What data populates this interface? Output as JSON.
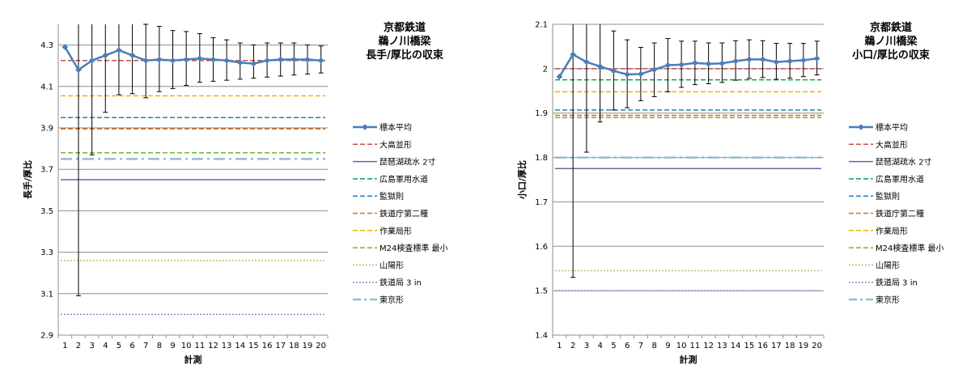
{
  "chart_data": [
    {
      "type": "line",
      "title_lines": [
        "京都鉄道",
        "鵜ノ川橋梁",
        "長手/厚比の収束"
      ],
      "xlabel": "計測",
      "ylabel": "長手/厚比",
      "ylim": [
        2.9,
        4.4
      ],
      "yticks": [
        "2.9",
        "3.1",
        "3.3",
        "3.5",
        "3.7",
        "3.9",
        "4.1",
        "4.3"
      ],
      "ytick_values": [
        2.9,
        3.1,
        3.3,
        3.5,
        3.7,
        3.9,
        4.1,
        4.3
      ],
      "categories": [
        "1",
        "2",
        "3",
        "4",
        "5",
        "6",
        "7",
        "8",
        "9",
        "10",
        "11",
        "12",
        "13",
        "14",
        "15",
        "16",
        "17",
        "18",
        "19",
        "20"
      ],
      "grid": true,
      "legend_position": "right",
      "sample": {
        "name": "標本平均",
        "color": "#4a7ebb",
        "values": [
          4.29,
          4.18,
          4.225,
          4.25,
          4.275,
          4.25,
          4.225,
          4.23,
          4.225,
          4.23,
          4.235,
          4.23,
          4.225,
          4.215,
          4.21,
          4.225,
          4.23,
          4.23,
          4.23,
          4.225
        ],
        "err_high": [
          null,
          4.46,
          4.46,
          4.44,
          4.42,
          4.41,
          4.4,
          4.39,
          4.37,
          4.365,
          4.355,
          4.335,
          4.325,
          4.31,
          4.3,
          4.31,
          4.31,
          4.31,
          4.3,
          4.295
        ],
        "err_low": [
          null,
          3.09,
          3.77,
          3.975,
          4.06,
          4.065,
          4.045,
          4.075,
          4.09,
          4.105,
          4.12,
          4.125,
          4.13,
          4.135,
          4.14,
          4.145,
          4.15,
          4.155,
          4.16,
          4.165
        ]
      },
      "references": [
        {
          "name": "大高並形",
          "value": 4.225,
          "color": "#c0504d",
          "dash": "dash"
        },
        {
          "name": "琵琶湖疏水 2寸",
          "value": 3.65,
          "color": "#7b5ea7",
          "dash": "solid"
        },
        {
          "name": "広島軍用水道",
          "value": 3.78,
          "color": "#00a651",
          "dash": "dash"
        },
        {
          "name": "監獄則",
          "value": 3.95,
          "color": "#1f85b8",
          "dash": "dash"
        },
        {
          "name": "鉄道庁第二種",
          "value": 3.895,
          "color": "#e46c0a",
          "dash": "dash"
        },
        {
          "name": "作業局形",
          "value": 4.055,
          "color": "#f0b400",
          "dash": "dash"
        },
        {
          "name": "M24検査標準 最小",
          "value": 3.78,
          "color": "#77b039",
          "dash": "dash"
        },
        {
          "name": "山陽形",
          "value": 3.26,
          "color": "#c4bd66",
          "dash": "dot"
        },
        {
          "name": "鉄道局 3 in",
          "value": 3.0,
          "color": "#8c86c9",
          "dash": "dot"
        },
        {
          "name": "東京形",
          "value": 3.75,
          "color": "#8fbfd0",
          "dash": "dashdot"
        }
      ]
    },
    {
      "type": "line",
      "title_lines": [
        "京都鉄道",
        "鵜ノ川橋梁",
        "小口/厚比の収束"
      ],
      "xlabel": "計測",
      "ylabel": "小口/厚比",
      "ylim": [
        1.4,
        2.1
      ],
      "yticks": [
        "1.4",
        "1.5",
        "1.6",
        "1.7",
        "1.8",
        "1.9",
        "2",
        "2.1"
      ],
      "ytick_values": [
        1.4,
        1.5,
        1.6,
        1.7,
        1.8,
        1.9,
        2.0,
        2.1
      ],
      "categories": [
        "1",
        "2",
        "3",
        "4",
        "5",
        "6",
        "7",
        "8",
        "9",
        "10",
        "11",
        "12",
        "13",
        "14",
        "15",
        "16",
        "17",
        "18",
        "19",
        "20"
      ],
      "grid": true,
      "legend_position": "right",
      "sample": {
        "name": "標本平均",
        "color": "#4a7ebb",
        "values": [
          1.982,
          2.032,
          2.015,
          2.005,
          1.995,
          1.987,
          1.988,
          1.998,
          2.008,
          2.009,
          2.013,
          2.011,
          2.012,
          2.017,
          2.021,
          2.021,
          2.015,
          2.017,
          2.019,
          2.023
        ],
        "err_high": [
          null,
          2.11,
          2.11,
          2.11,
          2.085,
          2.065,
          2.048,
          2.058,
          2.068,
          2.062,
          2.062,
          2.058,
          2.058,
          2.063,
          2.065,
          2.063,
          2.057,
          2.057,
          2.057,
          2.062
        ],
        "err_low": [
          null,
          1.53,
          1.812,
          1.88,
          1.907,
          1.912,
          1.928,
          1.937,
          1.948,
          1.958,
          1.964,
          1.966,
          1.969,
          1.974,
          1.978,
          1.98,
          1.976,
          1.979,
          1.982,
          1.986
        ]
      },
      "references": [
        {
          "name": "大高並形",
          "value": 2.0,
          "color": "#c0504d",
          "dash": "dash"
        },
        {
          "name": "琵琶湖疏水 2寸",
          "value": 1.775,
          "color": "#7b5ea7",
          "dash": "solid"
        },
        {
          "name": "広島軍用水道",
          "value": 1.975,
          "color": "#00a651",
          "dash": "dash"
        },
        {
          "name": "監獄則",
          "value": 1.907,
          "color": "#1f85b8",
          "dash": "dash"
        },
        {
          "name": "鉄道庁第二種",
          "value": 1.895,
          "color": "#e46c0a",
          "dash": "dash"
        },
        {
          "name": "作業局形",
          "value": 1.948,
          "color": "#f0b400",
          "dash": "dash"
        },
        {
          "name": "M24検査標準 最小",
          "value": 1.89,
          "color": "#77b039",
          "dash": "dash"
        },
        {
          "name": "山陽形",
          "value": 1.545,
          "color": "#c4bd66",
          "dash": "dot"
        },
        {
          "name": "鉄道局 3 in",
          "value": 1.5,
          "color": "#8c86c9",
          "dash": "dot"
        },
        {
          "name": "東京形",
          "value": 1.8,
          "color": "#8fbfd0",
          "dash": "dashdot"
        }
      ]
    }
  ]
}
